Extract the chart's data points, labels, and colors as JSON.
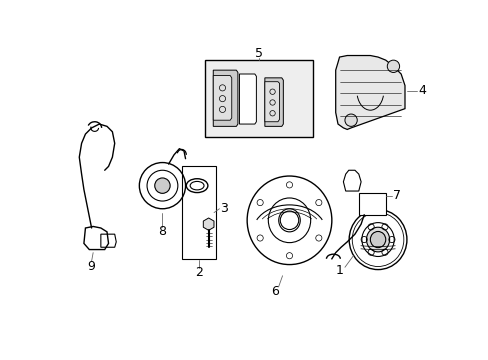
{
  "background_color": "#ffffff",
  "line_color": "#000000",
  "gray_fill": "#e8e8e8",
  "light_fill": "#f4f4f4"
}
